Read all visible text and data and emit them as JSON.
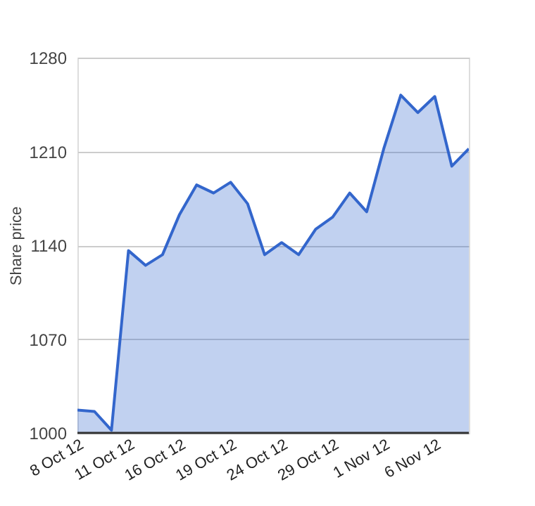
{
  "chart_data": {
    "type": "area",
    "ylabel": "Share price",
    "categories": [
      "8 Oct 12",
      null,
      null,
      "11 Oct 12",
      null,
      null,
      "16 Oct 12",
      null,
      null,
      "19 Oct 12",
      null,
      null,
      "24 Oct 12",
      null,
      null,
      "29 Oct 12",
      null,
      null,
      "1 Nov 12",
      null,
      null,
      "6 Nov 12",
      null,
      null
    ],
    "series": [
      {
        "color": "#3366cc",
        "values": [
          1017,
          1016,
          1002,
          1136,
          1125,
          1133,
          1163,
          1185,
          1179,
          1187,
          1171,
          1133,
          1142,
          1133,
          1152,
          1161,
          1179,
          1165,
          1212,
          1252,
          1239,
          1251,
          1199,
          1212
        ]
      }
    ],
    "ylim": [
      1000,
      1280
    ],
    "yticks": [
      1000,
      1070,
      1140,
      1210,
      1280
    ],
    "grid": "y",
    "line_style": "solid",
    "marker": "none"
  }
}
